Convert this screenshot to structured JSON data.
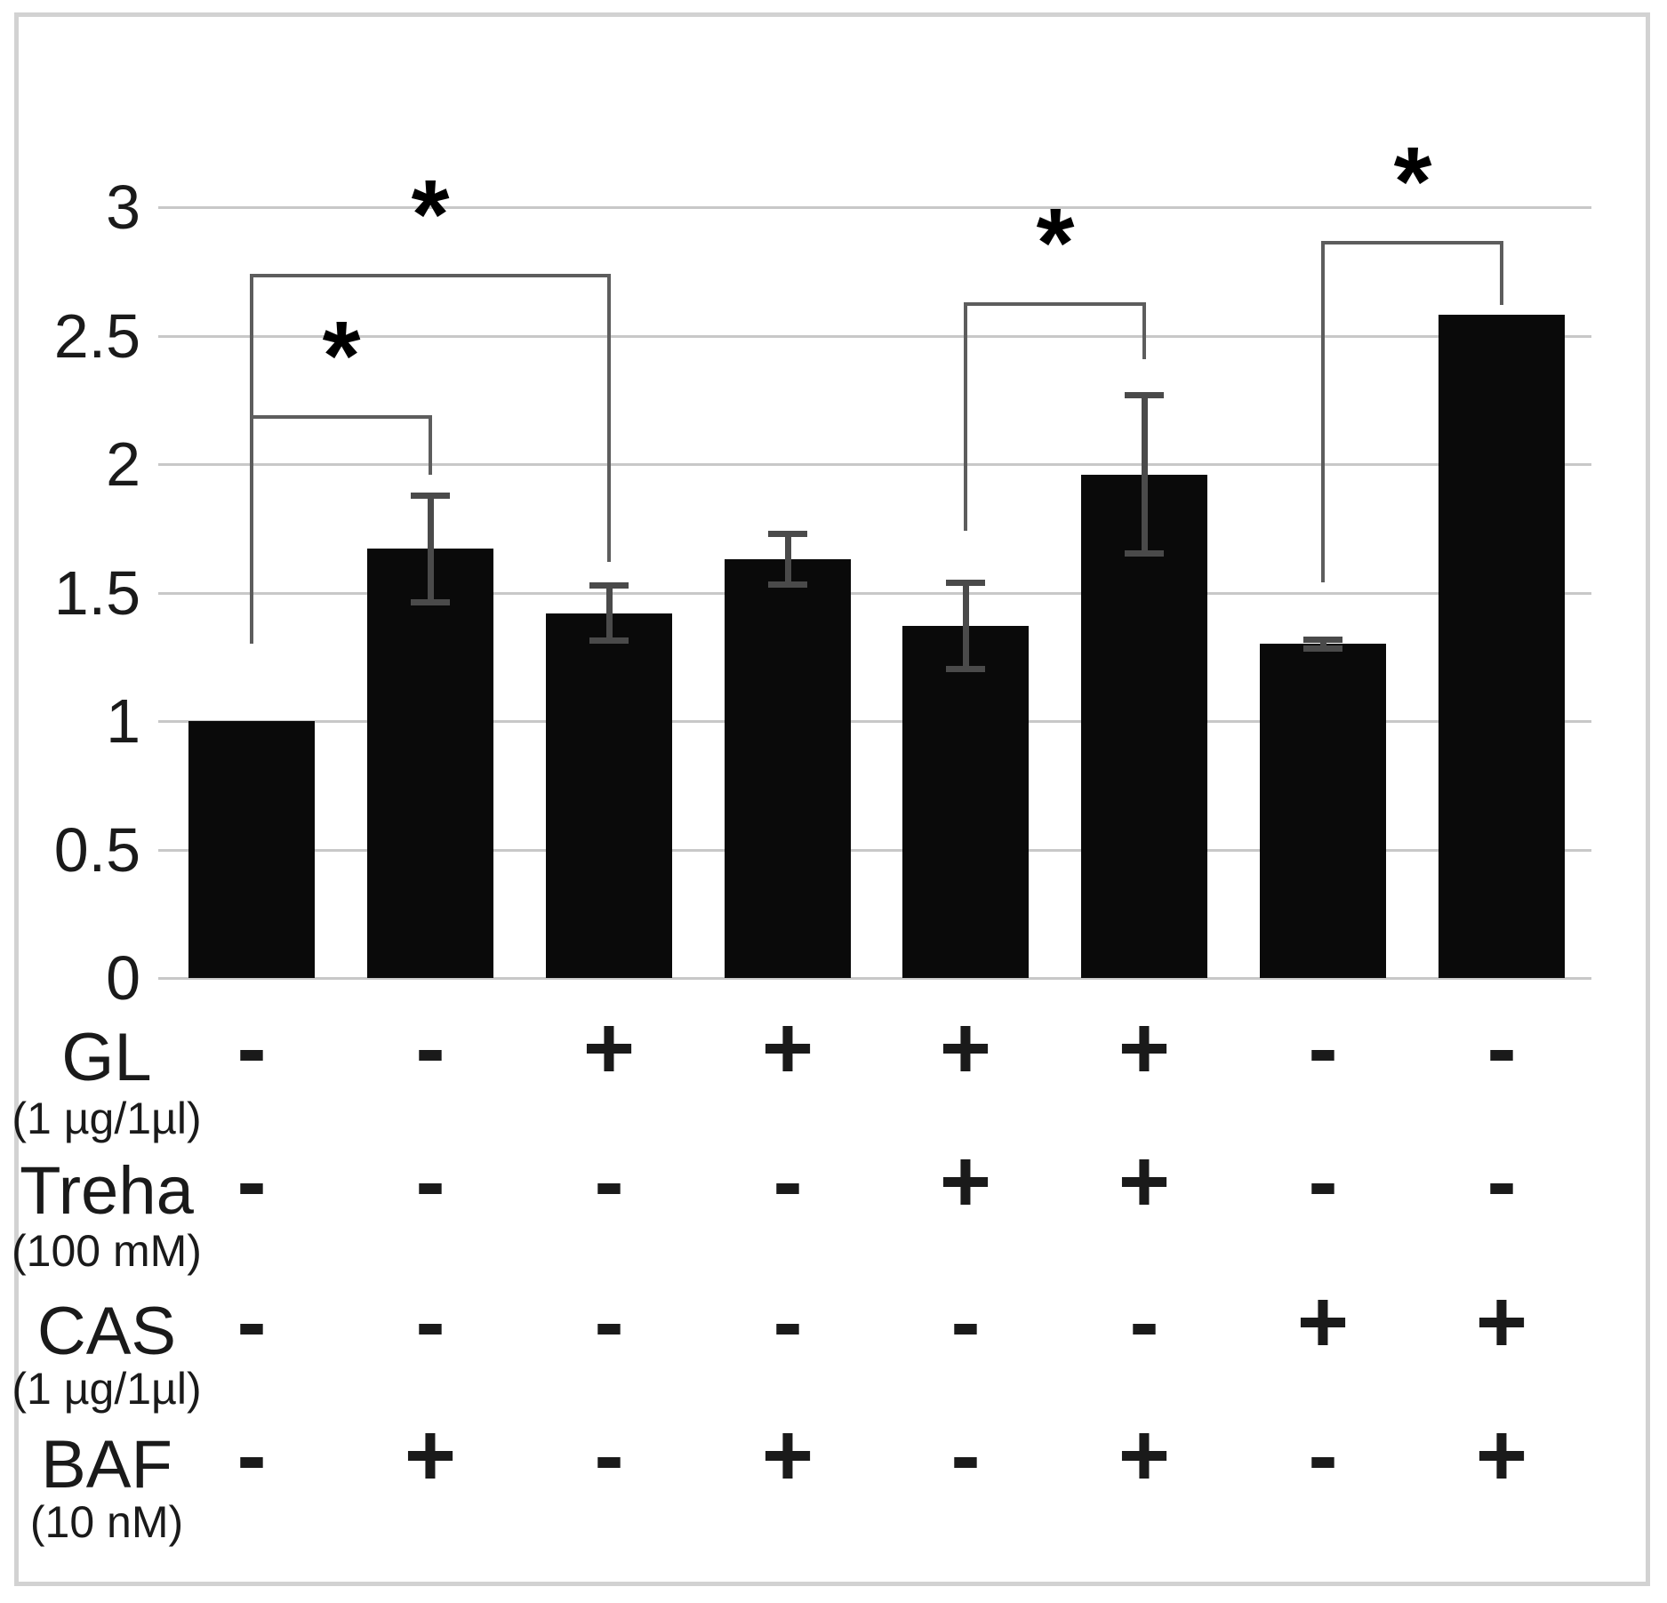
{
  "figure": {
    "background": "#ffffff",
    "frame_color": "#d2d2d2"
  },
  "chart_data": {
    "type": "bar",
    "title": "",
    "xlabel": "",
    "ylabel": "",
    "ylim": [
      0,
      3
    ],
    "grid": "horizontal",
    "legend": "none",
    "yticks": [
      {
        "label": "3",
        "value": 3
      },
      {
        "label": "2.5",
        "value": 2.5
      },
      {
        "label": "2",
        "value": 2
      },
      {
        "label": "1.5",
        "value": 1.5
      },
      {
        "label": "1",
        "value": 1
      },
      {
        "label": "0.5",
        "value": 0.5
      },
      {
        "label": "0",
        "value": 0
      }
    ],
    "n_bars": 8,
    "series": [
      {
        "name": "bars",
        "values": [
          1.0,
          1.67,
          1.42,
          1.63,
          1.37,
          1.96,
          1.3,
          2.58
        ],
        "errors": [
          0,
          0.21,
          0.11,
          0.1,
          0.17,
          0.31,
          0.02,
          0
        ]
      }
    ],
    "significance_brackets": [
      {
        "from_bar": 1,
        "to_bar": 2,
        "label": "*",
        "height": 2.19,
        "left_drop_to": 1.3,
        "right_drop_to": 1.96
      },
      {
        "from_bar": 1,
        "to_bar": 3,
        "label": "*",
        "height": 2.74,
        "left_drop_to": 1.3,
        "right_drop_to": 1.62
      },
      {
        "from_bar": 5,
        "to_bar": 6,
        "label": "*",
        "height": 2.63,
        "left_drop_to": 1.74,
        "right_drop_to": 2.41
      },
      {
        "from_bar": 7,
        "to_bar": 8,
        "label": "*",
        "height": 2.87,
        "left_drop_to": 1.54,
        "right_drop_to": 2.62
      }
    ],
    "condition_rows": [
      {
        "label": "GL",
        "sub": "(1 µg/1µl)",
        "signs": [
          "-",
          "-",
          "+",
          "+",
          "+",
          "+",
          "-",
          "-"
        ]
      },
      {
        "label": "Treha",
        "sub": "(100 mM)",
        "signs": [
          "-",
          "-",
          "-",
          "-",
          "+",
          "+",
          "-",
          "-"
        ]
      },
      {
        "label": "CAS",
        "sub": "(1 µg/1µl)",
        "signs": [
          "-",
          "-",
          "-",
          "-",
          "-",
          "-",
          "+",
          "+"
        ]
      },
      {
        "label": "BAF",
        "sub": "(10 nM)",
        "signs": [
          "-",
          "+",
          "-",
          "+",
          "-",
          "+",
          "-",
          "+"
        ]
      }
    ],
    "colors": {
      "bar": "#0a0a0a",
      "gridline": "#c8c8c8",
      "error_bar": "#4a4a4a",
      "bracket": "#5d5d5d",
      "text": "#1a1a1a",
      "asterisk": "#000000"
    }
  }
}
